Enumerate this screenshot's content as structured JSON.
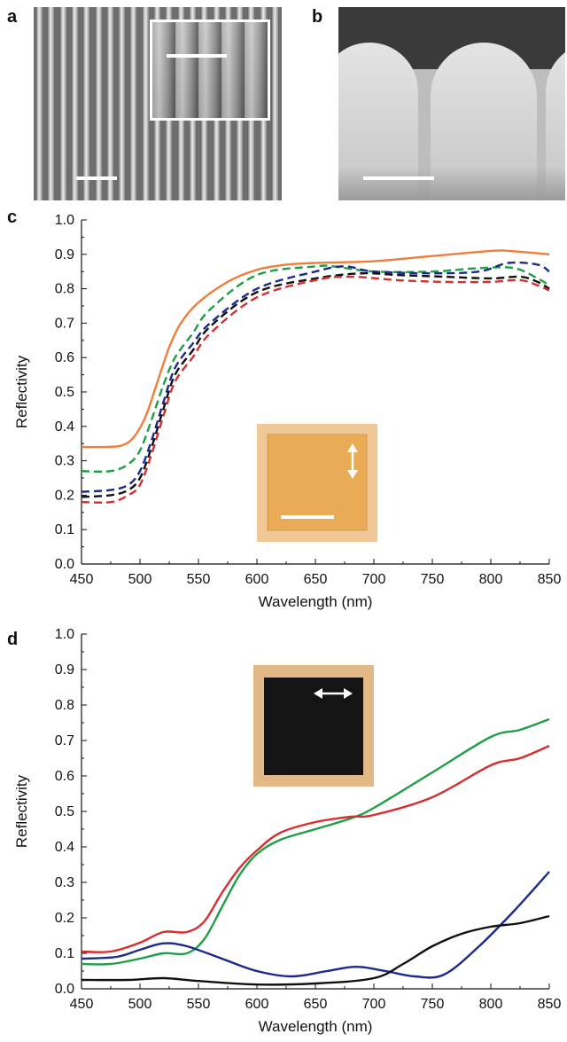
{
  "panels": {
    "a": "a",
    "b": "b",
    "c": "c",
    "d": "d"
  },
  "chart_data": [
    {
      "type": "line",
      "panel": "c",
      "title": "",
      "xlabel": "Wavelength (nm)",
      "ylabel": "Reflectivity",
      "xlim": [
        450,
        850
      ],
      "ylim": [
        0,
        1.0
      ],
      "xticks": [
        450,
        500,
        550,
        600,
        650,
        700,
        750,
        800,
        850
      ],
      "yticks": [
        "0.0",
        "0.1",
        "0.2",
        "0.3",
        "0.4",
        "0.5",
        "0.6",
        "0.7",
        "0.8",
        "0.9",
        "1.0"
      ],
      "grid": false,
      "inset": "optical-image-orange-square",
      "series": [
        {
          "color": "#ef7d3c",
          "dash": false,
          "x": [
            450,
            470,
            485,
            495,
            505,
            515,
            525,
            535,
            550,
            575,
            600,
            625,
            650,
            700,
            750,
            800,
            815,
            850
          ],
          "y": [
            0.34,
            0.34,
            0.345,
            0.37,
            0.43,
            0.53,
            0.63,
            0.7,
            0.76,
            0.82,
            0.855,
            0.87,
            0.875,
            0.88,
            0.895,
            0.91,
            0.91,
            0.9
          ]
        },
        {
          "color": "#1f9e47",
          "dash": true,
          "x": [
            450,
            475,
            490,
            500,
            510,
            520,
            530,
            545,
            560,
            600,
            650,
            665,
            700,
            750,
            790,
            820,
            840,
            850
          ],
          "y": [
            0.27,
            0.27,
            0.29,
            0.33,
            0.42,
            0.52,
            0.6,
            0.67,
            0.74,
            0.84,
            0.865,
            0.865,
            0.85,
            0.85,
            0.86,
            0.86,
            0.83,
            0.81
          ]
        },
        {
          "color": "#1c2a8c",
          "dash": true,
          "x": [
            450,
            475,
            490,
            500,
            510,
            520,
            530,
            545,
            560,
            600,
            650,
            675,
            700,
            750,
            790,
            815,
            840,
            850
          ],
          "y": [
            0.21,
            0.215,
            0.23,
            0.27,
            0.36,
            0.47,
            0.57,
            0.64,
            0.7,
            0.8,
            0.85,
            0.865,
            0.85,
            0.845,
            0.85,
            0.875,
            0.87,
            0.85
          ]
        },
        {
          "color": "#111111",
          "dash": true,
          "x": [
            450,
            475,
            490,
            500,
            510,
            520,
            530,
            545,
            560,
            600,
            650,
            690,
            720,
            760,
            800,
            825,
            840,
            850
          ],
          "y": [
            0.195,
            0.2,
            0.215,
            0.25,
            0.34,
            0.45,
            0.55,
            0.62,
            0.69,
            0.79,
            0.83,
            0.845,
            0.84,
            0.835,
            0.83,
            0.835,
            0.82,
            0.8
          ]
        },
        {
          "color": "#d62e2e",
          "dash": true,
          "x": [
            450,
            475,
            490,
            500,
            510,
            520,
            530,
            545,
            560,
            600,
            650,
            680,
            720,
            760,
            800,
            825,
            840,
            850
          ],
          "y": [
            0.18,
            0.18,
            0.2,
            0.23,
            0.32,
            0.43,
            0.53,
            0.6,
            0.67,
            0.775,
            0.825,
            0.835,
            0.825,
            0.82,
            0.82,
            0.825,
            0.81,
            0.795
          ]
        }
      ]
    },
    {
      "type": "line",
      "panel": "d",
      "title": "",
      "xlabel": "Wavelength (nm)",
      "ylabel": "Reflectivity",
      "xlim": [
        450,
        850
      ],
      "ylim": [
        0,
        1.0
      ],
      "xticks": [
        450,
        500,
        550,
        600,
        650,
        700,
        750,
        800,
        850
      ],
      "yticks": [
        "0.0",
        "0.1",
        "0.2",
        "0.3",
        "0.4",
        "0.5",
        "0.6",
        "0.7",
        "0.8",
        "0.9",
        "1.0"
      ],
      "grid": false,
      "inset": "optical-image-black-square",
      "series": [
        {
          "color": "#1f9e47",
          "dash": false,
          "x": [
            450,
            475,
            500,
            520,
            540,
            555,
            570,
            585,
            600,
            620,
            650,
            680,
            700,
            750,
            800,
            825,
            850
          ],
          "y": [
            0.07,
            0.07,
            0.085,
            0.1,
            0.1,
            0.14,
            0.23,
            0.32,
            0.38,
            0.42,
            0.45,
            0.48,
            0.51,
            0.61,
            0.71,
            0.73,
            0.76
          ]
        },
        {
          "color": "#d62e2e",
          "dash": false,
          "x": [
            450,
            475,
            500,
            520,
            540,
            555,
            570,
            585,
            600,
            620,
            650,
            680,
            700,
            750,
            800,
            825,
            850
          ],
          "y": [
            0.105,
            0.105,
            0.13,
            0.16,
            0.16,
            0.19,
            0.27,
            0.34,
            0.39,
            0.44,
            0.47,
            0.485,
            0.49,
            0.54,
            0.63,
            0.65,
            0.685
          ]
        },
        {
          "color": "#1c2a8c",
          "dash": false,
          "x": [
            450,
            480,
            500,
            520,
            540,
            570,
            600,
            630,
            660,
            685,
            710,
            735,
            760,
            790,
            820,
            850
          ],
          "y": [
            0.085,
            0.09,
            0.11,
            0.128,
            0.12,
            0.085,
            0.05,
            0.035,
            0.05,
            0.062,
            0.05,
            0.035,
            0.04,
            0.12,
            0.22,
            0.33
          ]
        },
        {
          "color": "#111111",
          "dash": false,
          "x": [
            450,
            490,
            520,
            550,
            600,
            650,
            700,
            725,
            750,
            775,
            800,
            825,
            850
          ],
          "y": [
            0.025,
            0.025,
            0.03,
            0.022,
            0.012,
            0.015,
            0.03,
            0.07,
            0.12,
            0.155,
            0.175,
            0.185,
            0.205
          ]
        }
      ]
    }
  ]
}
